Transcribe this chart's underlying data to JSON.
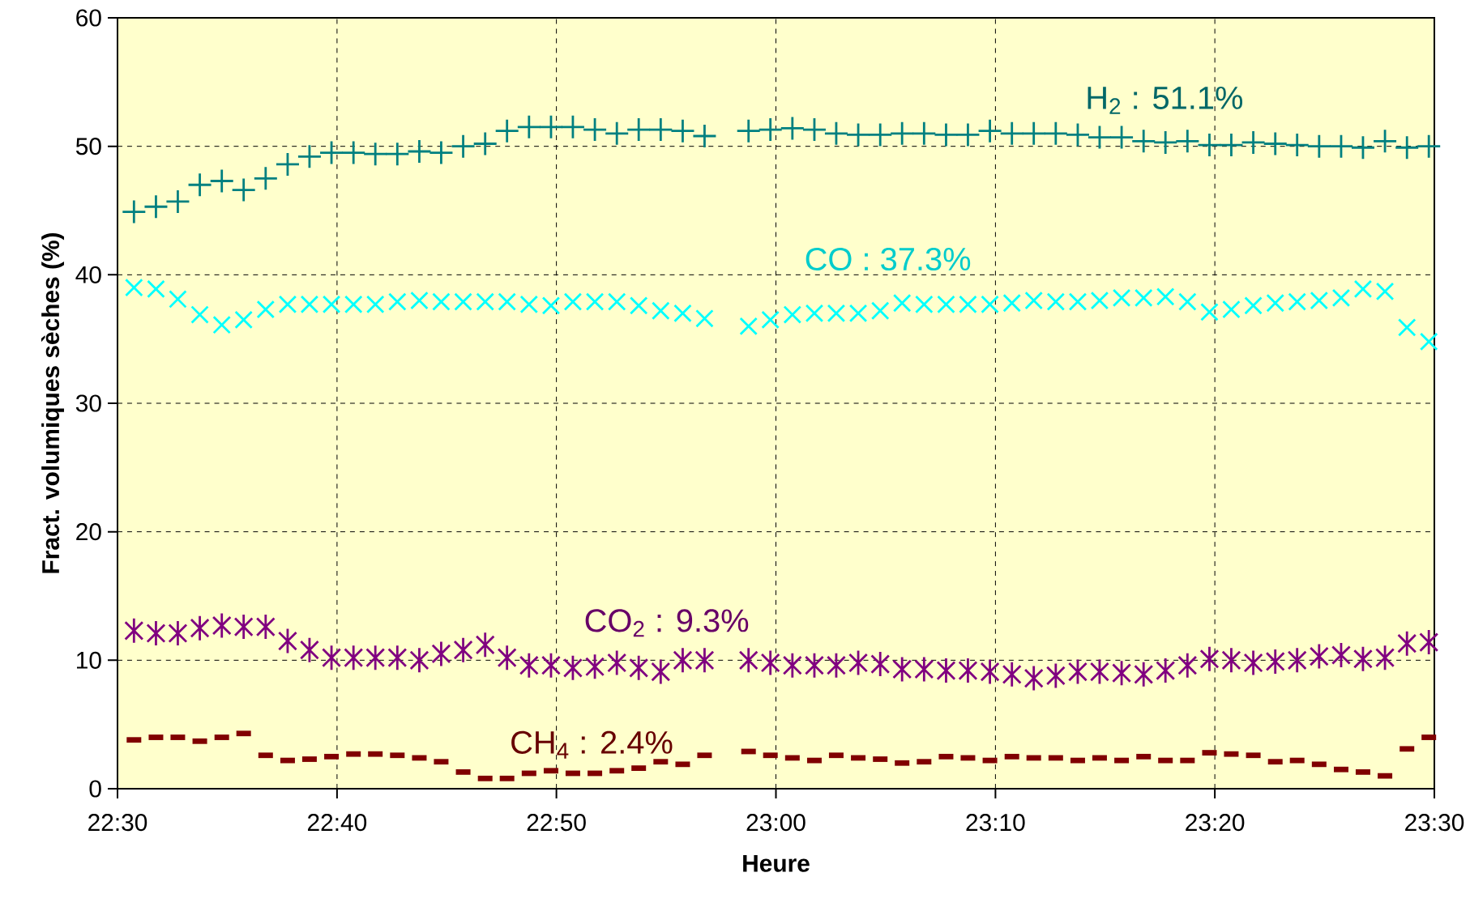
{
  "chart_data": {
    "type": "scatter",
    "xlabel": "Heure",
    "ylabel": "Fract. volumiques sèches (%)",
    "x": [
      22.5125,
      22.5292,
      22.5458,
      22.5625,
      22.5792,
      22.5958,
      22.6125,
      22.6292,
      22.6458,
      22.6625,
      22.6792,
      22.6958,
      22.7125,
      22.7292,
      22.7458,
      22.7625,
      22.7792,
      22.7958,
      22.8125,
      22.8292,
      22.8458,
      22.8625,
      22.8792,
      22.8958,
      22.9125,
      22.9292,
      22.9458,
      22.9625,
      22.9792,
      22.9958,
      23.0125,
      23.0292,
      23.0458,
      23.0625,
      23.0792,
      23.0958,
      23.1125,
      23.1292,
      23.1458,
      23.1625,
      23.1792,
      23.1958,
      23.2125,
      23.2292,
      23.2458,
      23.2625,
      23.2792,
      23.2958,
      23.3125,
      23.3292,
      23.3458,
      23.3625,
      23.3792,
      23.3958,
      23.4125,
      23.4292,
      23.4458,
      23.4625,
      23.4792,
      23.4958
    ],
    "series": [
      {
        "color": "#008080",
        "values": [
          44.9,
          45.3,
          45.7,
          47.0,
          47.3,
          46.6,
          47.5,
          48.6,
          49.2,
          49.5,
          49.5,
          49.4,
          49.4,
          49.6,
          49.5,
          50.0,
          50.2,
          51.2,
          51.5,
          51.5,
          51.5,
          51.3,
          51.0,
          51.3,
          51.3,
          51.2,
          50.8,
          null,
          51.2,
          51.3,
          51.4,
          51.3,
          51.0,
          50.9,
          50.9,
          51.0,
          51.0,
          50.9,
          50.9,
          51.2,
          51.0,
          51.0,
          51.0,
          50.9,
          50.7,
          50.7,
          50.4,
          50.3,
          50.4,
          50.1,
          50.1,
          50.3,
          50.2,
          50.1,
          50.0,
          50.0,
          49.9,
          50.4,
          49.9,
          50.0
        ]
      },
      {
        "color": "#00ffff",
        "marker": "cross",
        "values": [
          39.0,
          38.9,
          38.1,
          36.9,
          36.1,
          36.5,
          37.3,
          37.7,
          37.7,
          37.7,
          37.7,
          37.7,
          37.9,
          38.0,
          37.9,
          37.9,
          37.9,
          37.9,
          37.7,
          37.6,
          37.9,
          37.9,
          37.9,
          37.6,
          37.2,
          37.0,
          36.6,
          null,
          36.0,
          36.5,
          36.9,
          37.0,
          37.0,
          37.0,
          37.2,
          37.8,
          37.7,
          37.7,
          37.7,
          37.7,
          37.8,
          38.0,
          37.9,
          37.9,
          38.0,
          38.2,
          38.2,
          38.3,
          37.9,
          37.1,
          37.3,
          37.6,
          37.8,
          37.9,
          38.0,
          38.2,
          38.9,
          38.7,
          35.9,
          34.8
        ]
      },
      {
        "color": "#800080",
        "marker": "star",
        "values": [
          12.3,
          12.1,
          12.1,
          12.5,
          12.7,
          12.6,
          12.6,
          11.5,
          10.8,
          10.2,
          10.2,
          10.2,
          10.2,
          10.0,
          10.5,
          10.8,
          11.2,
          10.2,
          9.6,
          9.6,
          9.4,
          9.5,
          9.8,
          9.4,
          9.1,
          10.0,
          10.0,
          null,
          10.0,
          9.8,
          9.6,
          9.6,
          9.6,
          9.8,
          9.7,
          9.3,
          9.3,
          9.2,
          9.2,
          9.1,
          8.9,
          8.6,
          8.8,
          9.1,
          9.1,
          9.0,
          8.9,
          9.2,
          9.6,
          10.1,
          10.0,
          9.8,
          9.9,
          10.0,
          10.3,
          10.4,
          10.1,
          10.2,
          11.3,
          11.4
        ]
      },
      {
        "color": "#800000",
        "values": [
          3.8,
          4.0,
          4.0,
          3.7,
          4.0,
          4.3,
          2.6,
          2.2,
          2.3,
          2.5,
          2.7,
          2.7,
          2.6,
          2.4,
          2.1,
          1.3,
          0.8,
          0.8,
          1.2,
          1.4,
          1.2,
          1.2,
          1.4,
          1.6,
          2.1,
          1.9,
          2.6,
          null,
          2.9,
          2.6,
          2.4,
          2.2,
          2.6,
          2.4,
          2.3,
          2.0,
          2.1,
          2.5,
          2.4,
          2.2,
          2.5,
          2.4,
          2.4,
          2.2,
          2.4,
          2.2,
          2.5,
          2.2,
          2.2,
          2.8,
          2.7,
          2.6,
          2.1,
          2.2,
          1.9,
          1.5,
          1.3,
          1.0,
          3.1,
          4.0
        ]
      }
    ],
    "annotations": [
      "H$_{2}$ : 51.1%",
      "CO : 37.3%",
      "CO$_{2}$ : 9.3%",
      "CH$_{4}$ : 2.4%"
    ],
    "xlim": [
      22.5,
      23.5
    ],
    "xticks": [
      {
        "value": 22.5,
        "label": "22:30"
      },
      {
        "value": 22.6667,
        "label": "22:40"
      },
      {
        "value": 22.8333,
        "label": "22:50"
      },
      {
        "value": 23.0,
        "label": "23:00"
      },
      {
        "value": 23.1667,
        "label": "23:10"
      },
      {
        "value": 23.3333,
        "label": "23:20"
      },
      {
        "value": 23.5,
        "label": "23:30"
      }
    ],
    "ylim": [
      0,
      60
    ],
    "yticks": [
      0,
      10,
      20,
      30,
      40,
      50,
      60
    ],
    "grid": true
  }
}
